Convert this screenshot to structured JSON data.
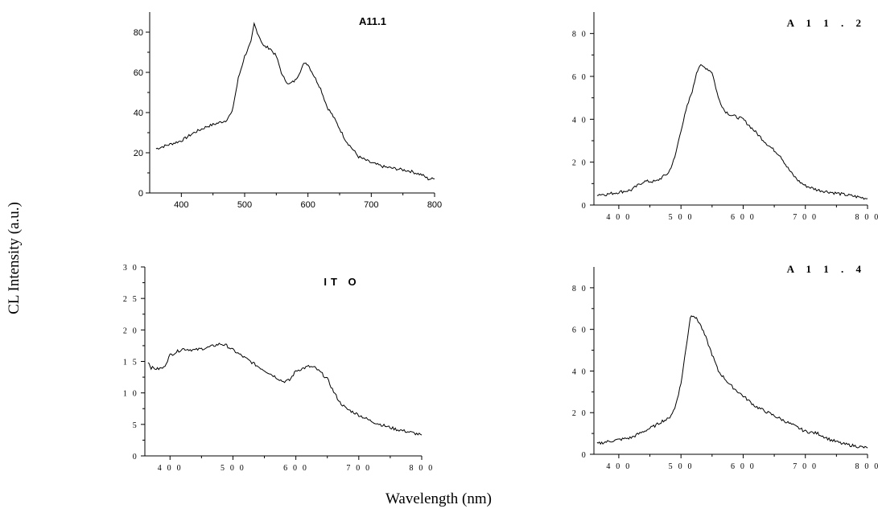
{
  "figure": {
    "ylabel": "CL  Intensity (a.u.)",
    "xlabel": "Wavelength (nm)"
  },
  "chart_data": [
    {
      "type": "line",
      "title": "A11.1",
      "xlim": [
        350,
        800
      ],
      "ylim": [
        0,
        90
      ],
      "xticks": [
        "400",
        "500",
        "600",
        "700",
        "800"
      ],
      "yticks": [
        "0",
        "20",
        "40",
        "60",
        "80"
      ],
      "series": [
        {
          "x": [
            360,
            380,
            400,
            420,
            440,
            460,
            470,
            480,
            490,
            500,
            510,
            515,
            520,
            530,
            540,
            550,
            560,
            570,
            580,
            590,
            595,
            600,
            610,
            620,
            630,
            640,
            650,
            660,
            670,
            680,
            700,
            720,
            740,
            760,
            780,
            790,
            800
          ],
          "y": [
            22,
            24,
            26,
            30,
            33,
            35,
            36,
            40,
            57,
            68,
            75,
            84,
            80,
            73,
            72,
            68,
            58,
            54,
            56,
            62,
            65,
            64,
            58,
            52,
            43,
            38,
            32,
            26,
            22,
            18,
            15,
            13,
            12,
            11,
            9,
            7,
            7
          ]
        }
      ]
    },
    {
      "type": "line",
      "title": "A 1 1 . 2",
      "xlim": [
        360,
        800
      ],
      "ylim": [
        0,
        90
      ],
      "xticks": [
        "4 0 0",
        "5 0 0",
        "6 0 0",
        "7 0 0",
        "8 0 0"
      ],
      "yticks": [
        "0",
        "2 0",
        "4 0",
        "6 0",
        "8 0"
      ],
      "series": [
        {
          "x": [
            365,
            380,
            400,
            420,
            440,
            460,
            470,
            480,
            490,
            500,
            510,
            520,
            525,
            530,
            540,
            550,
            560,
            570,
            580,
            600,
            620,
            640,
            660,
            670,
            680,
            690,
            700,
            720,
            740,
            760,
            780,
            800
          ],
          "y": [
            5,
            5,
            6,
            7,
            11,
            11,
            13,
            15,
            22,
            35,
            46,
            55,
            62,
            65,
            64,
            62,
            50,
            44,
            42,
            40,
            34,
            28,
            23,
            18,
            14,
            11,
            9,
            7,
            6,
            5,
            4,
            3
          ]
        }
      ]
    },
    {
      "type": "line",
      "title": "IT O",
      "xlim": [
        360,
        800
      ],
      "ylim": [
        0,
        30
      ],
      "xticks": [
        "4 0 0",
        "5 0 0",
        "6 0 0",
        "7 0 0",
        "8 0 0"
      ],
      "yticks": [
        "0",
        "5",
        "1 0",
        "1 5",
        "2 0",
        "2 5",
        "3 0"
      ],
      "series": [
        {
          "x": [
            365,
            370,
            380,
            390,
            400,
            420,
            440,
            460,
            480,
            490,
            500,
            520,
            540,
            560,
            580,
            590,
            600,
            620,
            630,
            640,
            650,
            660,
            670,
            680,
            700,
            720,
            740,
            760,
            780,
            800
          ],
          "y": [
            15,
            14,
            13.8,
            14,
            16,
            17,
            16.8,
            17.2,
            17.8,
            17.5,
            16.8,
            15.5,
            14.2,
            13,
            11.8,
            12,
            13.5,
            14.2,
            14,
            13.2,
            12.2,
            10.2,
            8.5,
            7.5,
            6.5,
            5.5,
            4.8,
            4.2,
            3.8,
            3.3
          ]
        }
      ]
    },
    {
      "type": "line",
      "title": "A 1 1 . 4",
      "xlim": [
        360,
        800
      ],
      "ylim": [
        0,
        90
      ],
      "xticks": [
        "4 0 0",
        "5 0 0",
        "6 0 0",
        "7 0 0",
        "8 0 0"
      ],
      "yticks": [
        "0",
        "2 0",
        "4 0",
        "6 0",
        "8 0"
      ],
      "series": [
        {
          "x": [
            365,
            380,
            400,
            420,
            440,
            460,
            470,
            480,
            490,
            500,
            510,
            515,
            520,
            525,
            530,
            540,
            550,
            560,
            580,
            600,
            620,
            640,
            660,
            680,
            700,
            720,
            740,
            760,
            780,
            800
          ],
          "y": [
            5,
            6,
            7,
            8,
            11,
            14,
            16,
            17,
            22,
            34,
            55,
            66,
            67,
            65,
            63,
            56,
            48,
            40,
            33,
            28,
            23,
            20,
            17,
            14,
            11,
            10,
            7,
            5,
            4,
            3
          ]
        }
      ]
    }
  ]
}
